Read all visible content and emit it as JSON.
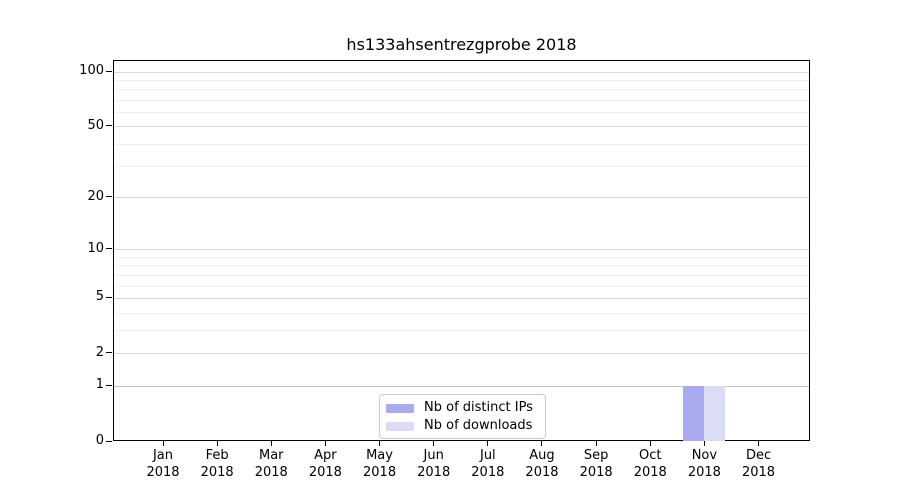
{
  "chart_data": {
    "type": "bar",
    "title": "hs133ahsentrezgprobe 2018",
    "x_year": "2018",
    "categories": [
      "Jan",
      "Feb",
      "Mar",
      "Apr",
      "May",
      "Jun",
      "Jul",
      "Aug",
      "Sep",
      "Oct",
      "Nov",
      "Dec"
    ],
    "series": [
      {
        "name": "Nb of distinct IPs",
        "color": "#aaaaf1",
        "values": [
          0,
          0,
          0,
          0,
          0,
          0,
          0,
          0,
          0,
          0,
          1,
          0
        ]
      },
      {
        "name": "Nb of downloads",
        "color": "#dcdcf7",
        "values": [
          0,
          0,
          0,
          0,
          0,
          0,
          0,
          0,
          0,
          0,
          1,
          0
        ]
      }
    ],
    "y_scale": "log1p",
    "y_major_ticks": [
      0,
      1,
      2,
      5,
      10,
      20,
      50,
      100
    ],
    "y_minor_ticks": [
      3,
      4,
      6,
      7,
      8,
      9,
      30,
      40,
      60,
      70,
      80,
      90
    ],
    "ylim": [
      0,
      115
    ],
    "grid": "horizontal",
    "legend_position": "lower-center-inside"
  }
}
